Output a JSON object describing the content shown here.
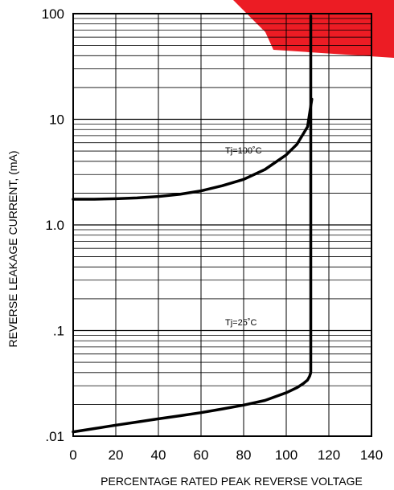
{
  "chart_data": {
    "type": "line",
    "title": "",
    "xlabel": "PERCENTAGE RATED PEAK REVERSE VOLTAGE",
    "ylabel": "REVERSE LEAKAGE CURRENT, (mA)",
    "xlim": [
      0,
      140
    ],
    "ylim": [
      0.01,
      100
    ],
    "yscale": "log",
    "grid": true,
    "x_ticks": [
      "0",
      "20",
      "40",
      "60",
      "80",
      "100",
      "120",
      "140"
    ],
    "y_ticks": [
      {
        "value": 0.01,
        "label": ".01"
      },
      {
        "value": 0.1,
        "label": ".1"
      },
      {
        "value": 1,
        "label": "1.0"
      },
      {
        "value": 10,
        "label": "10"
      },
      {
        "value": 100,
        "label": "100"
      }
    ],
    "series": [
      {
        "name": "Tj=100˚C",
        "x": [
          0,
          10,
          20,
          30,
          40,
          50,
          60,
          70,
          80,
          90,
          100,
          105,
          110,
          112
        ],
        "values": [
          1.75,
          1.75,
          1.77,
          1.8,
          1.86,
          1.95,
          2.1,
          2.35,
          2.7,
          3.35,
          4.6,
          5.8,
          8.5,
          15.5
        ]
      },
      {
        "name": "Tj=25˚C",
        "x": [
          0,
          10,
          20,
          30,
          40,
          50,
          60,
          70,
          80,
          90,
          100,
          105,
          108,
          110,
          111,
          111.5,
          111.5
        ],
        "values": [
          0.011,
          0.0118,
          0.0127,
          0.0136,
          0.0146,
          0.0156,
          0.0167,
          0.0181,
          0.0197,
          0.0218,
          0.0258,
          0.0288,
          0.0315,
          0.034,
          0.037,
          0.04,
          95
        ]
      }
    ]
  }
}
